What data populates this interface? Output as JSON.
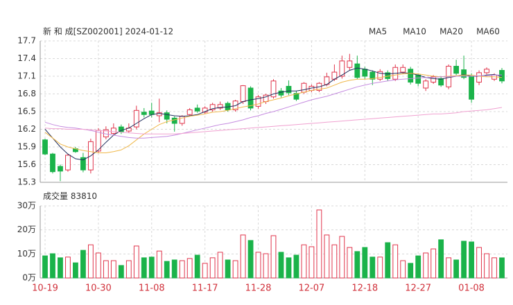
{
  "chart_data": [
    {
      "type": "candlestick",
      "title": "新 和 成[SZ002001] 2024-01-12",
      "categories": [
        "10-19",
        null,
        null,
        null,
        null,
        null,
        null,
        "10-30",
        null,
        null,
        null,
        null,
        null,
        null,
        "11-08",
        null,
        null,
        null,
        null,
        null,
        null,
        "11-17",
        null,
        null,
        null,
        null,
        null,
        null,
        "11-28",
        null,
        null,
        null,
        null,
        null,
        null,
        "12-07",
        null,
        null,
        null,
        null,
        null,
        null,
        "12-18",
        null,
        null,
        null,
        null,
        null,
        null,
        "12-27",
        null,
        null,
        null,
        null,
        null,
        null,
        "01-08",
        null,
        null,
        null,
        null
      ],
      "open": [
        16.02,
        15.78,
        15.57,
        15.51,
        15.87,
        15.72,
        15.51,
        15.83,
        16.07,
        16.13,
        16.24,
        16.17,
        16.24,
        16.49,
        16.51,
        16.43,
        16.48,
        16.39,
        16.3,
        16.45,
        16.56,
        16.49,
        16.53,
        16.56,
        16.64,
        16.53,
        16.67,
        16.9,
        16.59,
        16.67,
        16.75,
        16.85,
        16.93,
        16.81,
        16.83,
        16.86,
        16.86,
        16.96,
        17.05,
        17.1,
        17.25,
        17.31,
        17.22,
        17.17,
        17.05,
        17.16,
        17.05,
        17.17,
        17.22,
        17.12,
        16.9,
        17.0,
        17.06,
        16.92,
        17.27,
        17.21,
        17.1,
        17.0,
        17.16,
        17.05,
        17.2
      ],
      "high": [
        16.04,
        15.8,
        15.6,
        15.78,
        15.9,
        15.8,
        16.04,
        16.22,
        16.25,
        16.3,
        16.28,
        16.3,
        16.6,
        16.56,
        16.65,
        16.72,
        16.52,
        16.42,
        16.44,
        16.56,
        16.62,
        16.59,
        16.65,
        16.67,
        16.67,
        16.7,
        16.95,
        16.93,
        16.78,
        16.8,
        17.05,
        16.9,
        17.03,
        16.85,
        17.0,
        16.96,
        17.0,
        17.16,
        17.3,
        17.45,
        17.48,
        17.45,
        17.26,
        17.2,
        17.22,
        17.2,
        17.3,
        17.3,
        17.26,
        17.15,
        17.05,
        17.12,
        17.1,
        17.3,
        17.38,
        17.45,
        17.15,
        17.2,
        17.25,
        17.15,
        17.24
      ],
      "low": [
        15.76,
        15.45,
        15.32,
        15.48,
        15.8,
        15.47,
        15.45,
        15.8,
        16.03,
        16.1,
        16.12,
        16.14,
        16.2,
        16.4,
        16.4,
        16.32,
        16.3,
        16.16,
        16.26,
        16.42,
        16.48,
        16.46,
        16.5,
        16.53,
        16.5,
        16.5,
        16.63,
        16.52,
        16.55,
        16.63,
        16.72,
        16.74,
        16.78,
        16.68,
        16.8,
        16.83,
        16.83,
        16.93,
        17.02,
        17.06,
        17.2,
        17.05,
        17.05,
        16.95,
        17.02,
        17.02,
        17.02,
        17.14,
        16.96,
        16.93,
        16.85,
        16.97,
        16.92,
        16.88,
        17.12,
        17.05,
        16.65,
        16.95,
        17.13,
        17.02,
        16.98
      ],
      "close": [
        15.78,
        15.48,
        15.49,
        15.76,
        15.82,
        15.51,
        15.99,
        16.18,
        16.19,
        16.22,
        16.16,
        16.22,
        16.52,
        16.45,
        16.45,
        16.48,
        16.37,
        16.3,
        16.42,
        16.53,
        16.51,
        16.56,
        16.62,
        16.62,
        16.53,
        16.68,
        16.94,
        16.56,
        16.75,
        16.78,
        17.02,
        16.78,
        16.82,
        16.71,
        16.98,
        16.93,
        16.98,
        17.09,
        17.17,
        17.36,
        17.36,
        17.08,
        17.1,
        17.05,
        17.18,
        17.06,
        17.25,
        17.25,
        17.0,
        16.98,
        17.02,
        17.09,
        16.95,
        17.27,
        17.15,
        17.08,
        16.71,
        17.16,
        17.22,
        17.12,
        17.02
      ],
      "up_color": "#e0334a",
      "down_color": "#1bb34a",
      "series": [
        {
          "name": "MA5",
          "color": "#1f2d5c",
          "values": [
            16.2,
            16.05,
            15.9,
            15.78,
            15.7,
            15.68,
            15.75,
            15.85,
            15.98,
            16.1,
            16.18,
            16.22,
            16.3,
            16.38,
            16.45,
            16.47,
            16.45,
            16.43,
            16.42,
            16.43,
            16.45,
            16.5,
            16.55,
            16.57,
            16.58,
            16.6,
            16.67,
            16.7,
            16.72,
            16.75,
            16.8,
            16.83,
            16.85,
            16.85,
            16.87,
            16.9,
            16.92,
            16.96,
            17.05,
            17.12,
            17.2,
            17.24,
            17.22,
            17.19,
            17.15,
            17.14,
            17.15,
            17.16,
            17.15,
            17.12,
            17.08,
            17.06,
            17.05,
            17.08,
            17.1,
            17.13,
            17.1,
            17.1,
            17.12,
            17.13,
            17.1
          ]
        },
        {
          "name": "MA10",
          "color": "#f0b84a",
          "values": [
            16.15,
            16.05,
            15.95,
            15.9,
            15.87,
            15.84,
            15.82,
            15.8,
            15.8,
            15.82,
            15.85,
            15.92,
            16.02,
            16.12,
            16.2,
            16.28,
            16.33,
            16.36,
            16.39,
            16.42,
            16.44,
            16.46,
            16.49,
            16.5,
            16.52,
            16.55,
            16.58,
            16.6,
            16.63,
            16.67,
            16.7,
            16.73,
            16.77,
            16.8,
            16.83,
            16.86,
            16.88,
            16.9,
            16.95,
            17.0,
            17.03,
            17.05,
            17.05,
            17.06,
            17.08,
            17.1,
            17.12,
            17.14,
            17.15,
            17.14,
            17.12,
            17.1,
            17.09,
            17.1,
            17.11,
            17.12,
            17.12,
            17.1,
            17.09,
            17.09,
            17.08
          ]
        },
        {
          "name": "MA20",
          "color": "#c58be0",
          "values": [
            16.32,
            16.28,
            16.25,
            16.23,
            16.22,
            16.2,
            16.18,
            16.15,
            16.12,
            16.1,
            16.08,
            16.06,
            16.05,
            16.05,
            16.06,
            16.07,
            16.08,
            16.1,
            16.13,
            16.16,
            16.19,
            16.22,
            16.25,
            16.28,
            16.3,
            16.33,
            16.36,
            16.4,
            16.43,
            16.47,
            16.5,
            16.54,
            16.58,
            16.62,
            16.66,
            16.7,
            16.73,
            16.76,
            16.8,
            16.84,
            16.88,
            16.92,
            16.95,
            16.98,
            17.0,
            17.02,
            17.04,
            17.05,
            17.06,
            17.07,
            17.08,
            17.08,
            17.09,
            17.09,
            17.1,
            17.1,
            17.1,
            17.11,
            17.11,
            17.12,
            17.12
          ]
        },
        {
          "name": "MA60",
          "color": "#f0a0d0",
          "values": [
            16.22,
            16.21,
            16.21,
            16.2,
            16.2,
            16.2,
            16.19,
            16.18,
            16.17,
            16.16,
            16.15,
            16.14,
            16.13,
            16.12,
            16.12,
            16.12,
            16.12,
            16.12,
            16.13,
            16.14,
            16.15,
            16.16,
            16.17,
            16.18,
            16.19,
            16.2,
            16.21,
            16.22,
            16.23,
            16.24,
            16.25,
            16.26,
            16.27,
            16.28,
            16.29,
            16.3,
            16.31,
            16.32,
            16.33,
            16.34,
            16.35,
            16.36,
            16.37,
            16.38,
            16.39,
            16.4,
            16.41,
            16.42,
            16.43,
            16.44,
            16.45,
            16.46,
            16.46,
            16.47,
            16.48,
            16.5,
            16.51,
            16.52,
            16.53,
            16.55,
            16.57
          ]
        }
      ],
      "ylim": [
        15.3,
        17.7
      ],
      "yticks": [
        15.3,
        15.6,
        15.9,
        16.2,
        16.5,
        16.8,
        17.1,
        17.4,
        17.7
      ],
      "grid": true
    },
    {
      "type": "bar",
      "title": "成交量",
      "values": [
        92000,
        101000,
        84000,
        87000,
        63000,
        115000,
        138000,
        104000,
        72000,
        72000,
        52000,
        72000,
        133000,
        84000,
        87000,
        112000,
        69000,
        75000,
        72000,
        81000,
        95000,
        61000,
        84000,
        107000,
        75000,
        72000,
        179000,
        156000,
        107000,
        101000,
        176000,
        107000,
        84000,
        95000,
        138000,
        130000,
        283000,
        179000,
        138000,
        173000,
        127000,
        110000,
        127000,
        87000,
        87000,
        147000,
        138000,
        72000,
        61000,
        92000,
        104000,
        121000,
        159000,
        84000,
        75000,
        153000,
        150000,
        127000,
        101000,
        84000,
        83810
      ],
      "ylim": [
        0,
        300000
      ],
      "yticks": [
        {
          "value": 0,
          "label": "0万"
        },
        {
          "value": 100000,
          "label": "10万"
        },
        {
          "value": 200000,
          "label": "20万"
        },
        {
          "value": 300000,
          "label": "30万"
        }
      ],
      "grid": true
    }
  ]
}
